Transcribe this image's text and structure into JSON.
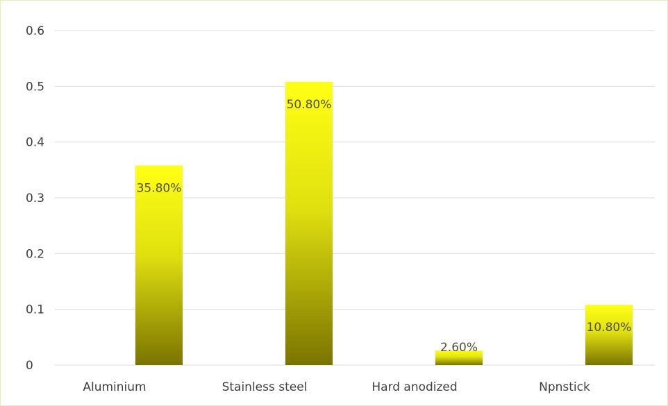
{
  "chart_data": {
    "type": "bar",
    "categories": [
      "Aluminium",
      "Stainless steel",
      "Hard anodized",
      "Npnstick"
    ],
    "values": [
      0.358,
      0.508,
      0.026,
      0.108
    ],
    "data_labels": [
      "35.80%",
      "50.80%",
      "2.60%",
      "10.80%"
    ],
    "ylim": [
      0,
      0.6
    ],
    "yticks": [
      0,
      0.1,
      0.2,
      0.3,
      0.4,
      0.5,
      0.6
    ],
    "ytick_labels": [
      "0",
      "0.1",
      "0.2",
      "0.3",
      "0.4",
      "0.5",
      "0.6"
    ],
    "grid": true,
    "legend": "none",
    "colors": {
      "bar_top": "#ffff14",
      "bar_mid": "#e0e010",
      "bar_bottom": "#7a7400",
      "gridline": "#d9d9d9",
      "frame": "#e4eebc"
    }
  }
}
